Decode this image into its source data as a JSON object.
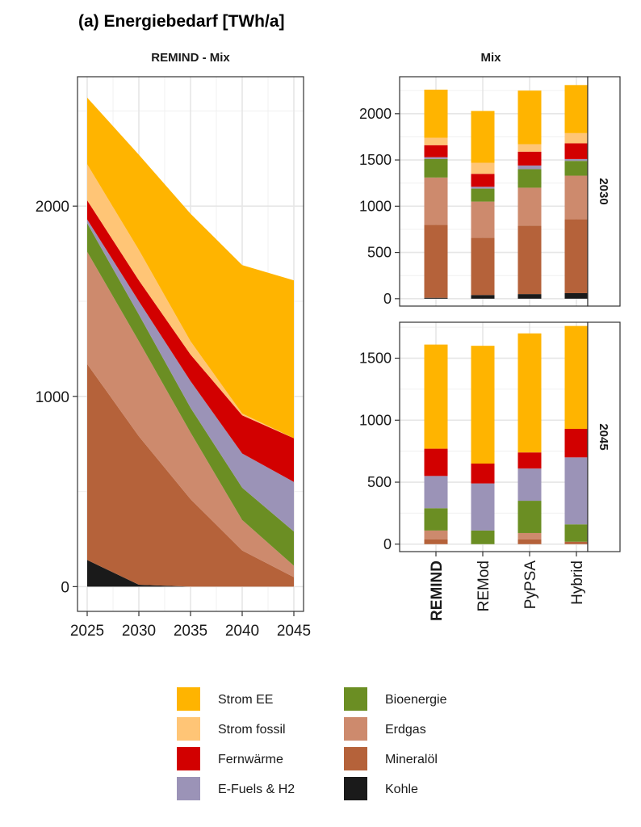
{
  "title": "(a) Energiebedarf [TWh/a]",
  "colors": {
    "Strom EE": "#FFB400",
    "Strom fossil": "#FFC576",
    "Fernwärme": "#D20000",
    "E-Fuels & H2": "#9B93B7",
    "Bioenergie": "#6B8E23",
    "Erdgas": "#CD8A6D",
    "Mineralöl": "#B5623A",
    "Kohle": "#1A1A1A"
  },
  "legend": [
    {
      "label": "Strom EE",
      "color": "#FFB400"
    },
    {
      "label": "Strom fossil",
      "color": "#FFC576"
    },
    {
      "label": "Fernwärme",
      "color": "#D20000"
    },
    {
      "label": "E-Fuels & H2",
      "color": "#9B93B7"
    },
    {
      "label": "Bioenergie",
      "color": "#6B8E23"
    },
    {
      "label": "Erdgas",
      "color": "#CD8A6D"
    },
    {
      "label": "Mineralöl",
      "color": "#B5623A"
    },
    {
      "label": "Kohle",
      "color": "#1A1A1A"
    }
  ],
  "chart_data": [
    {
      "type": "area",
      "title": "REMIND - Mix",
      "x": [
        2025,
        2030,
        2035,
        2040,
        2045
      ],
      "xlim": [
        2025,
        2045
      ],
      "ylim": [
        -130,
        2680
      ],
      "yticks": [
        0,
        1000,
        2000
      ],
      "grid": true,
      "stack_order": [
        "Kohle",
        "Mineralöl",
        "Erdgas",
        "Bioenergie",
        "E-Fuels & H2",
        "Fernwärme",
        "Strom fossil",
        "Strom EE"
      ],
      "series": [
        {
          "name": "Kohle",
          "values": [
            140,
            10,
            0,
            0,
            0
          ]
        },
        {
          "name": "Mineralöl",
          "values": [
            1030,
            780,
            460,
            190,
            50
          ]
        },
        {
          "name": "Erdgas",
          "values": [
            590,
            500,
            350,
            160,
            60
          ]
        },
        {
          "name": "Bioenergie",
          "values": [
            150,
            140,
            130,
            170,
            180
          ]
        },
        {
          "name": "E-Fuels & H2",
          "values": [
            20,
            70,
            140,
            180,
            260
          ]
        },
        {
          "name": "Fernwärme",
          "values": [
            100,
            110,
            140,
            200,
            230
          ]
        },
        {
          "name": "Strom fossil",
          "values": [
            190,
            160,
            70,
            10,
            0
          ]
        },
        {
          "name": "Strom EE",
          "values": [
            350,
            500,
            670,
            780,
            830
          ]
        }
      ]
    },
    {
      "type": "bar",
      "title": "Mix",
      "facet": "2030",
      "categories": [
        "REMIND",
        "REMod",
        "PyPSA",
        "Hybrid"
      ],
      "ylim": [
        -80,
        2400
      ],
      "yticks": [
        0,
        500,
        1000,
        1500,
        2000
      ],
      "grid": true,
      "stack_order": [
        "Kohle",
        "Mineralöl",
        "Erdgas",
        "Bioenergie",
        "E-Fuels & H2",
        "Fernwärme",
        "Strom fossil",
        "Strom EE"
      ],
      "series": [
        {
          "name": "Kohle",
          "values": [
            10,
            40,
            50,
            60
          ]
        },
        {
          "name": "Mineralöl",
          "values": [
            790,
            620,
            740,
            800
          ]
        },
        {
          "name": "Erdgas",
          "values": [
            510,
            390,
            410,
            470
          ]
        },
        {
          "name": "Bioenergie",
          "values": [
            200,
            140,
            200,
            160
          ]
        },
        {
          "name": "E-Fuels & H2",
          "values": [
            20,
            20,
            40,
            20
          ]
        },
        {
          "name": "Fernwärme",
          "values": [
            130,
            140,
            150,
            170
          ]
        },
        {
          "name": "Strom fossil",
          "values": [
            80,
            120,
            80,
            110
          ]
        },
        {
          "name": "Strom EE",
          "values": [
            520,
            560,
            580,
            520
          ]
        }
      ]
    },
    {
      "type": "bar",
      "facet": "2045",
      "categories": [
        "REMIND",
        "REMod",
        "PyPSA",
        "Hybrid"
      ],
      "ylim": [
        -60,
        1790
      ],
      "yticks": [
        0,
        500,
        1000,
        1500
      ],
      "grid": true,
      "stack_order": [
        "Kohle",
        "Mineralöl",
        "Erdgas",
        "Bioenergie",
        "E-Fuels & H2",
        "Fernwärme",
        "Strom fossil",
        "Strom EE"
      ],
      "series": [
        {
          "name": "Kohle",
          "values": [
            0,
            0,
            0,
            0
          ]
        },
        {
          "name": "Mineralöl",
          "values": [
            40,
            0,
            40,
            20
          ]
        },
        {
          "name": "Erdgas",
          "values": [
            70,
            0,
            50,
            0
          ]
        },
        {
          "name": "Bioenergie",
          "values": [
            180,
            110,
            260,
            140
          ]
        },
        {
          "name": "E-Fuels & H2",
          "values": [
            260,
            380,
            260,
            540
          ]
        },
        {
          "name": "Fernwärme",
          "values": [
            220,
            160,
            130,
            230
          ]
        },
        {
          "name": "Strom fossil",
          "values": [
            0,
            0,
            0,
            0
          ]
        },
        {
          "name": "Strom EE",
          "values": [
            840,
            950,
            960,
            830
          ]
        }
      ]
    }
  ]
}
